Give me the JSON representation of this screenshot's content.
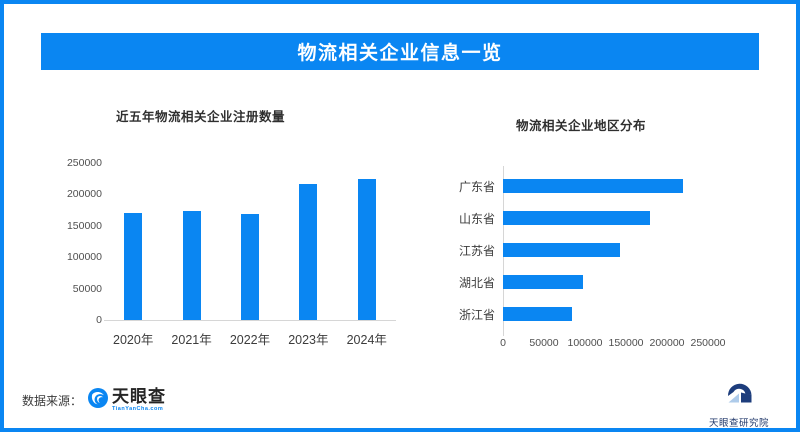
{
  "header": {
    "title": "物流相关企业信息一览"
  },
  "colors": {
    "accent": "#0a86f2",
    "bar": "#0a86f2",
    "axis_line": "#d6d6d6",
    "navy": "#1d3d7c",
    "light_blue": "#aecbea"
  },
  "chart_data": [
    {
      "type": "bar",
      "orientation": "vertical",
      "title": "近五年物流相关企业注册数量",
      "categories": [
        "2020年",
        "2021年",
        "2022年",
        "2023年",
        "2024年"
      ],
      "values": [
        170000,
        174000,
        169000,
        216000,
        225000
      ],
      "xlabel": "",
      "ylabel": "",
      "ylim": [
        0,
        250000
      ],
      "yticks": [
        0,
        50000,
        100000,
        150000,
        200000,
        250000
      ],
      "grid": false,
      "legend": null,
      "bar_color": "#0a86f2"
    },
    {
      "type": "bar",
      "orientation": "horizontal",
      "title": "物流相关企业地区分布",
      "categories": [
        "广东省",
        "山东省",
        "江苏省",
        "湖北省",
        "浙江省"
      ],
      "values": [
        220000,
        179000,
        143000,
        98000,
        84000
      ],
      "xlabel": "",
      "ylabel": "",
      "xlim": [
        0,
        250000
      ],
      "xticks": [
        0,
        50000,
        100000,
        150000,
        200000,
        250000
      ],
      "grid": false,
      "legend": null,
      "bar_color": "#0a86f2"
    }
  ],
  "footer": {
    "source_label": "数据来源：",
    "brand_name": "天眼查",
    "brand_domain": "TianYanCha.com",
    "institute_name": "天眼查研究院",
    "icons": {
      "brand_logo": "tianyancha-wave-circle-icon",
      "institute_logo": "institute-arch-mountain-icon"
    }
  }
}
